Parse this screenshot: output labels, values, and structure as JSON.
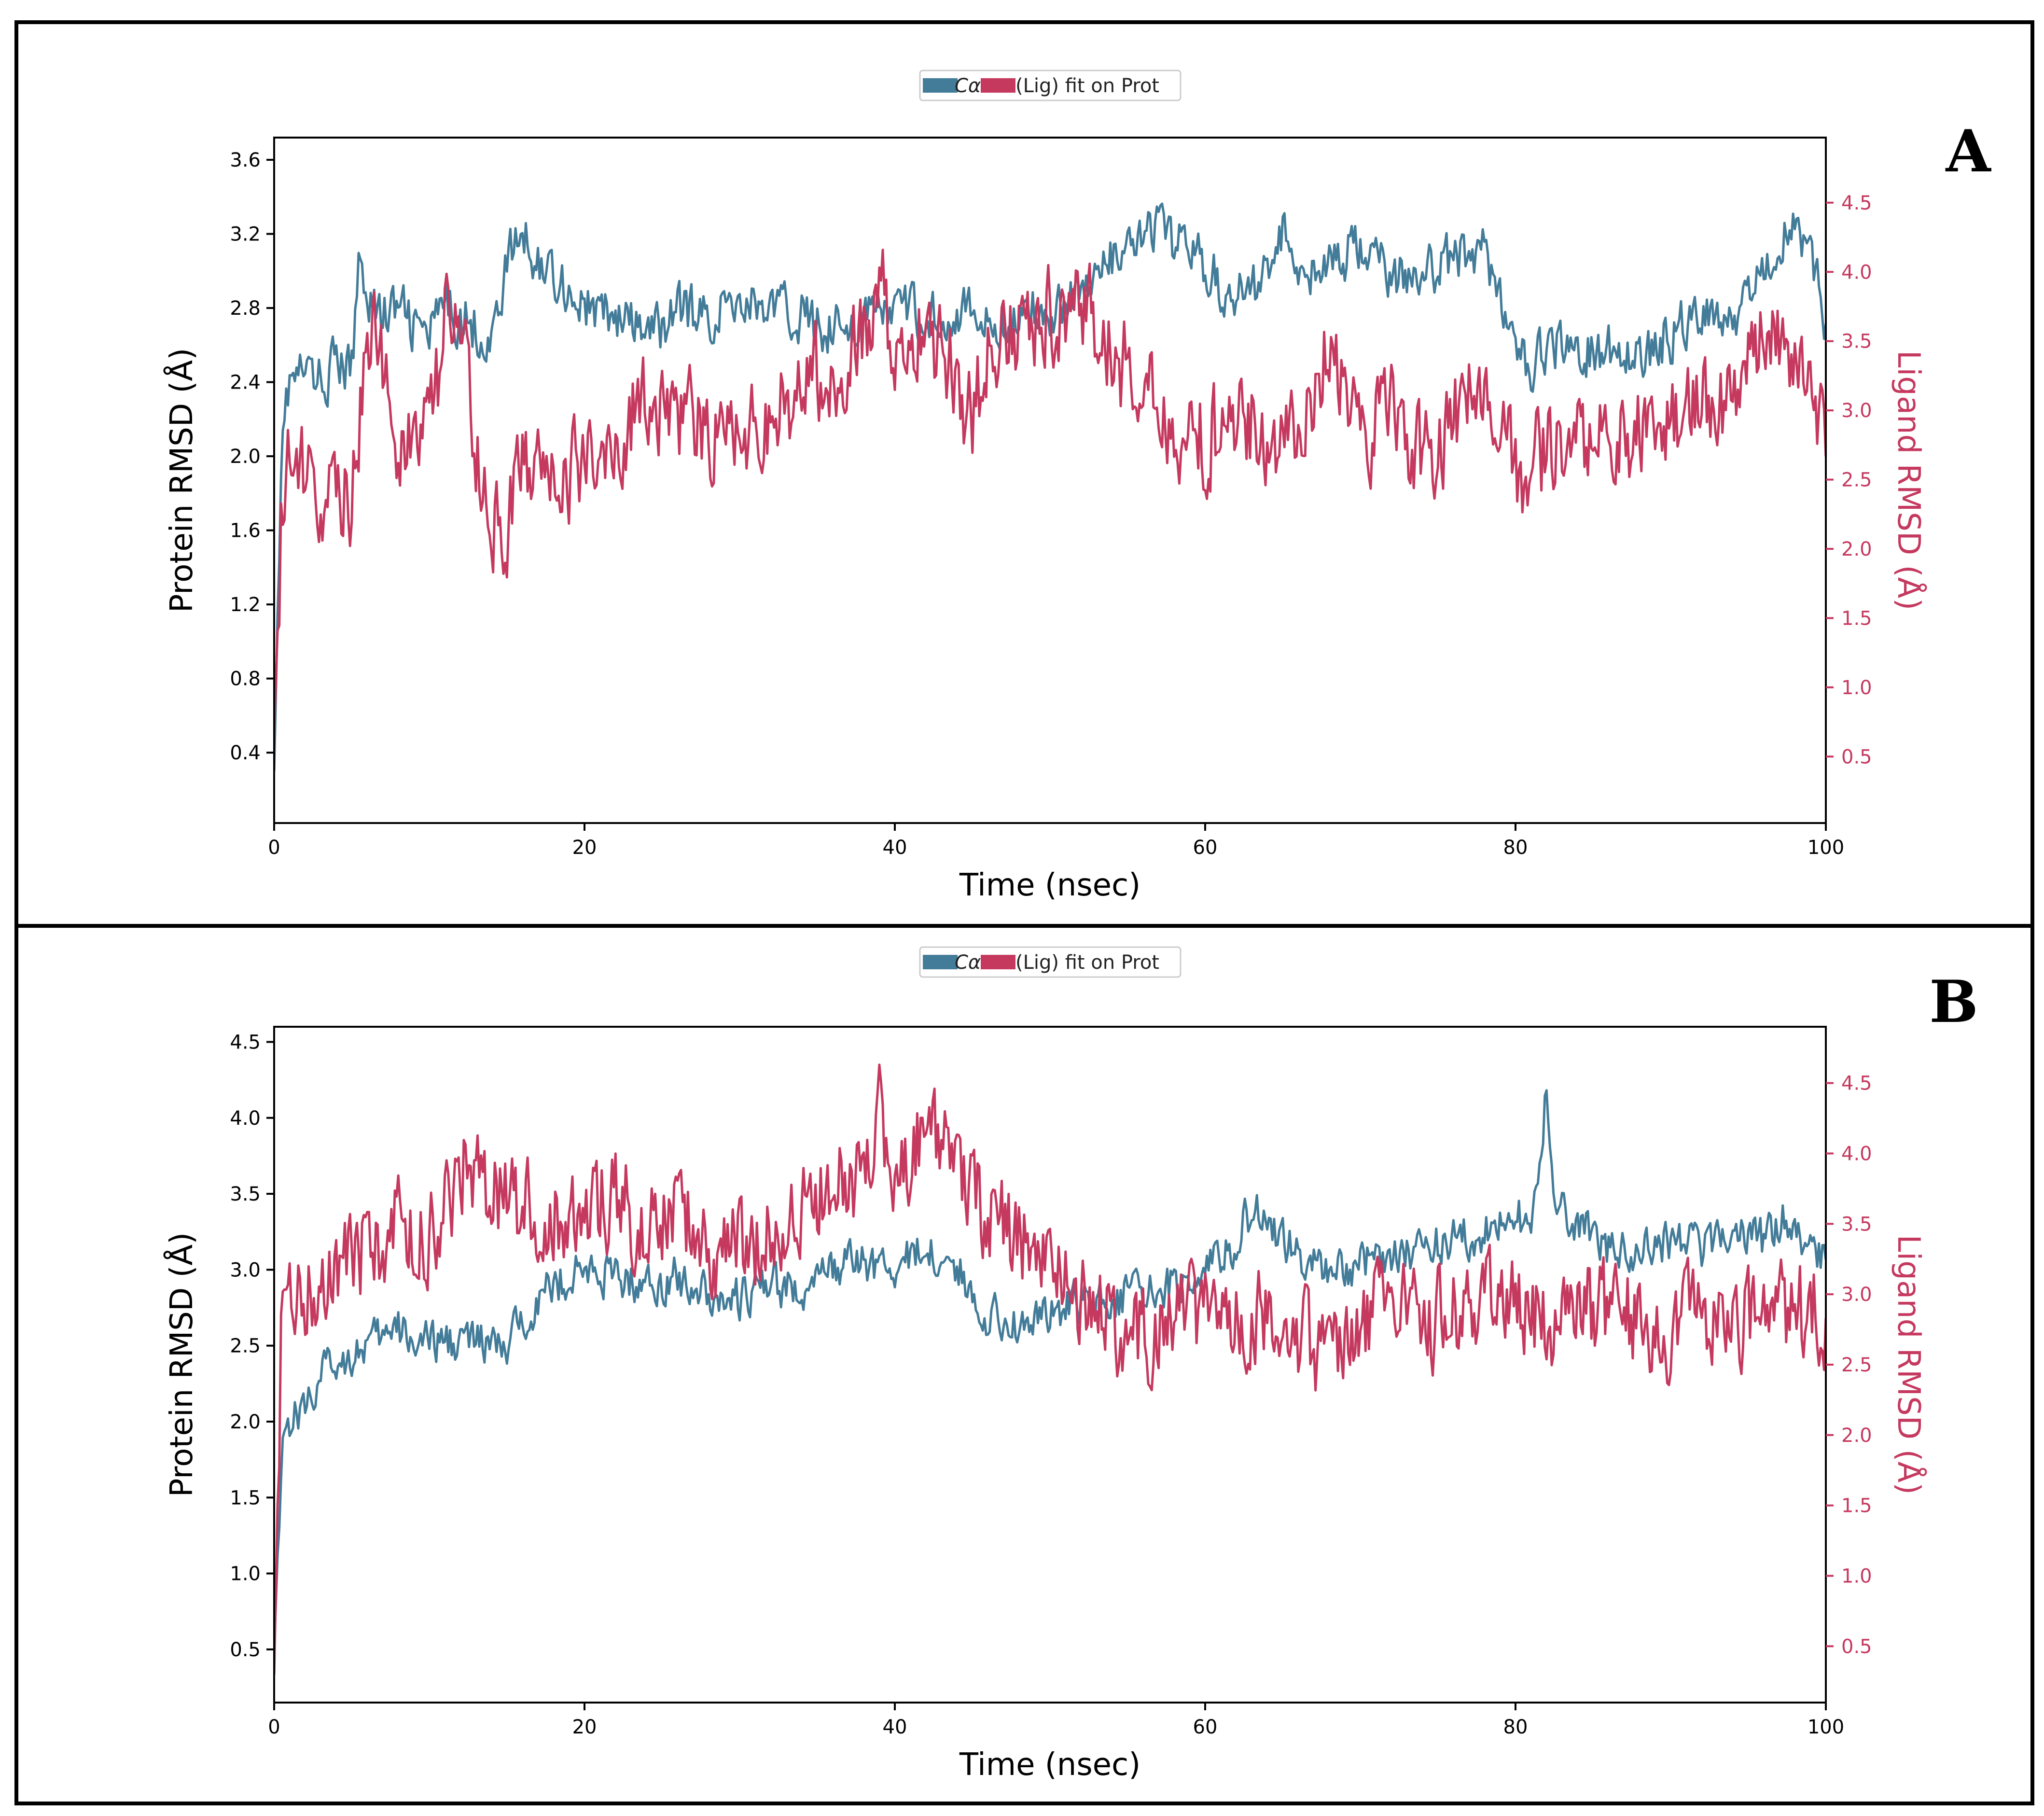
{
  "colors": {
    "protein": "#437c99",
    "ligand": "#c5395f",
    "axis": "#000000"
  },
  "chart_data": [
    {
      "type": "line",
      "panel_label": "A",
      "legend": {
        "protein": "Cα",
        "ligand": "(Lig) fit on Prot",
        "placement": "top-center"
      },
      "xlabel": "Time (nsec)",
      "ylabel_left": "Protein RMSD (Å)",
      "ylabel_right": "Ligand RMSD (Å)",
      "xlim": [
        0,
        100
      ],
      "ylim_left": [
        0.02,
        3.72
      ],
      "ylim_right": [
        0.02,
        4.97
      ],
      "xticks": [
        0,
        20,
        40,
        60,
        80,
        100
      ],
      "yticks_left": [
        "0.4",
        "0.8",
        "1.2",
        "1.6",
        "2.0",
        "2.4",
        "2.8",
        "3.2",
        "3.6"
      ],
      "yticks_right": [
        "0.5",
        "1.0",
        "1.5",
        "2.0",
        "2.5",
        "3.0",
        "3.5",
        "4.0",
        "4.5"
      ],
      "series": [
        {
          "name": "Cα",
          "axis": "left",
          "color": "#437c99",
          "x": [
            0,
            0.5,
            1,
            2,
            3,
            4,
            5,
            5.5,
            6,
            7,
            8,
            9,
            10,
            11,
            12,
            13,
            14,
            15,
            16,
            17,
            18,
            19,
            20,
            22,
            24,
            25,
            26,
            28,
            30,
            32,
            34,
            36,
            38,
            40,
            42,
            44,
            46,
            48,
            50,
            52,
            54,
            56,
            57,
            58,
            59,
            60,
            62,
            64,
            65,
            66,
            68,
            70,
            72,
            74,
            76,
            78,
            80,
            81,
            82,
            84,
            86,
            88,
            90,
            92,
            94,
            96,
            97,
            98,
            99,
            100
          ],
          "y": [
            0.3,
            2.2,
            2.4,
            2.45,
            2.4,
            2.5,
            2.45,
            3.1,
            2.9,
            2.75,
            2.8,
            2.7,
            2.65,
            2.8,
            2.75,
            2.7,
            2.6,
            3.05,
            3.2,
            3.05,
            3.0,
            2.9,
            2.8,
            2.75,
            2.65,
            2.7,
            2.8,
            2.75,
            2.85,
            2.8,
            2.75,
            2.7,
            2.75,
            2.8,
            2.75,
            2.8,
            2.7,
            2.75,
            2.8,
            2.9,
            3.05,
            3.15,
            3.25,
            3.1,
            3.2,
            3.0,
            2.85,
            3.0,
            3.2,
            3.05,
            3.0,
            3.15,
            2.95,
            3.0,
            3.05,
            3.15,
            2.55,
            2.45,
            2.6,
            2.55,
            2.6,
            2.55,
            2.65,
            2.8,
            2.75,
            3.0,
            3.2,
            3.3,
            3.1,
            2.7
          ]
        },
        {
          "name": "(Lig) fit on Prot",
          "axis": "right",
          "color": "#c5395f",
          "x": [
            0,
            0.5,
            1,
            2,
            3,
            4,
            5,
            6,
            7,
            8,
            9,
            10,
            11,
            12,
            13,
            14,
            15,
            16,
            18,
            20,
            22,
            24,
            26,
            28,
            30,
            32,
            34,
            36,
            38,
            39,
            40,
            42,
            44,
            45,
            46,
            48,
            50,
            52,
            54,
            56,
            58,
            60,
            62,
            64,
            66,
            68,
            70,
            72,
            74,
            76,
            78,
            80,
            82,
            84,
            86,
            88,
            90,
            92,
            94,
            96,
            97,
            98,
            100
          ],
          "y": [
            0.7,
            2.3,
            2.6,
            2.55,
            2.4,
            2.3,
            2.4,
            3.6,
            3.3,
            2.8,
            2.7,
            2.8,
            3.6,
            3.7,
            2.6,
            2.2,
            2.1,
            2.6,
            2.5,
            2.6,
            2.8,
            3.1,
            3.0,
            2.8,
            2.9,
            2.9,
            3.2,
            3.3,
            3.5,
            4.0,
            3.4,
            3.6,
            3.2,
            2.9,
            3.5,
            3.6,
            3.7,
            3.8,
            3.4,
            3.2,
            2.9,
            2.8,
            3.0,
            2.8,
            2.9,
            3.5,
            2.8,
            3.0,
            2.7,
            2.9,
            3.3,
            2.5,
            2.7,
            2.8,
            2.9,
            2.8,
            2.9,
            3.0,
            3.1,
            3.5,
            3.6,
            3.2,
            2.9
          ]
        }
      ]
    },
    {
      "type": "line",
      "panel_label": "B",
      "legend": {
        "protein": "Cα",
        "ligand": "(Lig) fit on Prot",
        "placement": "top-center"
      },
      "xlabel": "Time (nsec)",
      "ylabel_left": "Protein RMSD (Å)",
      "ylabel_right": "Ligand RMSD (Å)",
      "xlim": [
        0,
        100
      ],
      "ylim_left": [
        0.15,
        4.6
      ],
      "ylim_right": [
        0.1,
        4.9
      ],
      "xticks": [
        0,
        20,
        40,
        60,
        80,
        100
      ],
      "yticks_left": [
        "0.5",
        "1.0",
        "1.5",
        "2.0",
        "2.5",
        "3.0",
        "3.5",
        "4.0",
        "4.5"
      ],
      "yticks_right": [
        "0.5",
        "1.0",
        "1.5",
        "2.0",
        "2.5",
        "3.0",
        "3.5",
        "4.0",
        "4.5"
      ],
      "series": [
        {
          "name": "Cα",
          "axis": "left",
          "color": "#437c99",
          "x": [
            0,
            0.5,
            1,
            2,
            3,
            4,
            5,
            6,
            8,
            10,
            12,
            14,
            15,
            16,
            18,
            20,
            22,
            24,
            26,
            28,
            30,
            32,
            34,
            36,
            38,
            40,
            42,
            44,
            46,
            48,
            50,
            52,
            54,
            56,
            58,
            60,
            62,
            63,
            64,
            66,
            68,
            70,
            72,
            74,
            76,
            78,
            80,
            81,
            81.5,
            82,
            82.5,
            84,
            86,
            88,
            90,
            92,
            94,
            96,
            97,
            98,
            100
          ],
          "y": [
            0.5,
            1.9,
            2.0,
            2.1,
            2.3,
            2.4,
            2.45,
            2.5,
            2.6,
            2.5,
            2.55,
            2.5,
            2.45,
            2.7,
            2.9,
            3.0,
            2.95,
            2.9,
            2.95,
            2.85,
            2.8,
            2.9,
            2.85,
            3.0,
            3.05,
            3.0,
            3.15,
            3.0,
            2.7,
            2.65,
            2.7,
            2.8,
            2.8,
            2.85,
            2.9,
            3.0,
            3.2,
            3.4,
            3.3,
            3.1,
            3.0,
            3.05,
            3.1,
            3.15,
            3.2,
            3.25,
            3.3,
            3.4,
            3.5,
            4.2,
            3.4,
            3.3,
            3.15,
            3.1,
            3.2,
            3.15,
            3.25,
            3.2,
            3.35,
            3.25,
            3.1
          ]
        },
        {
          "name": "(Lig) fit on Prot",
          "axis": "right",
          "color": "#c5395f",
          "x": [
            0,
            0.5,
            1,
            2,
            3,
            4,
            6,
            8,
            10,
            12,
            14,
            16,
            18,
            20,
            22,
            24,
            26,
            28,
            30,
            32,
            34,
            36,
            38,
            39,
            40,
            42,
            44,
            46,
            48,
            50,
            52,
            54,
            56,
            58,
            60,
            62,
            64,
            66,
            68,
            70,
            72,
            74,
            76,
            78,
            80,
            82,
            84,
            86,
            88,
            90,
            92,
            94,
            96,
            98,
            100
          ],
          "y": [
            0.3,
            3.0,
            3.1,
            3.0,
            3.1,
            3.2,
            3.3,
            3.5,
            3.4,
            3.9,
            3.8,
            3.6,
            3.5,
            3.6,
            3.7,
            3.5,
            3.6,
            3.3,
            3.4,
            3.4,
            3.7,
            3.8,
            3.8,
            4.3,
            3.9,
            4.1,
            3.9,
            3.6,
            3.4,
            3.2,
            3.0,
            2.8,
            2.7,
            2.9,
            2.8,
            2.9,
            2.85,
            2.7,
            2.6,
            2.75,
            2.9,
            2.8,
            2.85,
            3.0,
            2.9,
            2.8,
            2.85,
            2.9,
            2.8,
            2.75,
            2.85,
            2.8,
            2.8,
            2.9,
            2.85
          ]
        }
      ]
    }
  ]
}
